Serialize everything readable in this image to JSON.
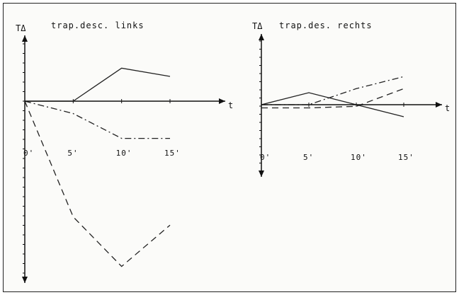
{
  "chart_data": [
    {
      "type": "line",
      "title": "trap.desc.  links",
      "ylabel": "TΔ",
      "xlabel": "t",
      "x": [
        0,
        5,
        10,
        15
      ],
      "x_tick_labels": [
        "0'",
        "5'",
        "10'",
        "15'"
      ],
      "ylim": [
        -22,
        4
      ],
      "grid": false,
      "series": [
        {
          "style": "solid",
          "color": "#222222",
          "values": [
            0,
            0,
            4,
            3
          ]
        },
        {
          "style": "dash-dot",
          "color": "#222222",
          "values": [
            0,
            -1.5,
            -4.5,
            -4.5
          ]
        },
        {
          "style": "dashed",
          "color": "#222222",
          "values": [
            0,
            -14,
            -20,
            -15
          ]
        }
      ]
    },
    {
      "type": "line",
      "title": "trap.des.    rechts",
      "ylabel": "TΔ",
      "xlabel": "t",
      "x": [
        0,
        5,
        10,
        15
      ],
      "x_tick_labels": [
        "0'",
        "5'",
        "10'",
        "15'"
      ],
      "ylim": [
        -9,
        7
      ],
      "grid": false,
      "series": [
        {
          "style": "solid",
          "color": "#222222",
          "values": [
            0,
            1.5,
            0,
            -1.5
          ]
        },
        {
          "style": "dash-dot",
          "color": "#222222",
          "values": [
            0,
            0,
            2,
            3.5
          ]
        },
        {
          "style": "dashed",
          "color": "#222222",
          "values": [
            -0.4,
            -0.4,
            -0.2,
            2
          ]
        }
      ]
    }
  ]
}
